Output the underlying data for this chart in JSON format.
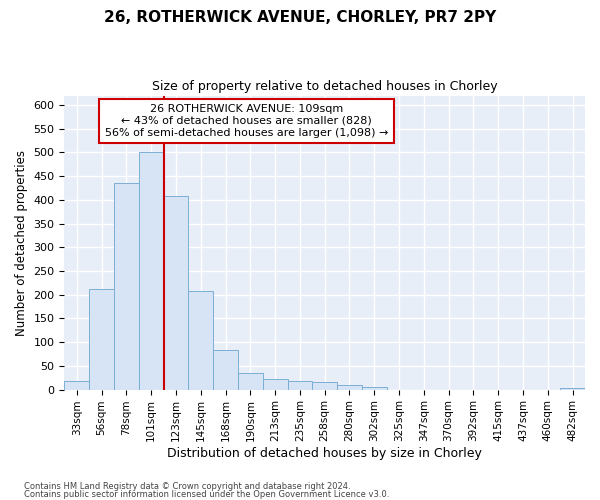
{
  "title_line1": "26, ROTHERWICK AVENUE, CHORLEY, PR7 2PY",
  "title_line2": "Size of property relative to detached houses in Chorley",
  "xlabel": "Distribution of detached houses by size in Chorley",
  "ylabel": "Number of detached properties",
  "categories": [
    "33sqm",
    "56sqm",
    "78sqm",
    "101sqm",
    "123sqm",
    "145sqm",
    "168sqm",
    "190sqm",
    "213sqm",
    "235sqm",
    "258sqm",
    "280sqm",
    "302sqm",
    "325sqm",
    "347sqm",
    "370sqm",
    "392sqm",
    "415sqm",
    "437sqm",
    "460sqm",
    "482sqm"
  ],
  "values": [
    18,
    212,
    435,
    500,
    408,
    207,
    83,
    36,
    22,
    18,
    15,
    10,
    5,
    0,
    0,
    0,
    0,
    0,
    0,
    0,
    4
  ],
  "bar_color": "#d6e4f5",
  "bar_edge_color": "#7bafd4",
  "vline_color": "#cc0000",
  "vline_pos": 3.5,
  "annotation_line1": "26 ROTHERWICK AVENUE: 109sqm",
  "annotation_line2": "← 43% of detached houses are smaller (828)",
  "annotation_line3": "56% of semi-detached houses are larger (1,098) →",
  "annotation_box_facecolor": "#ffffff",
  "annotation_box_edgecolor": "#cc0000",
  "ylim": [
    0,
    620
  ],
  "yticks": [
    0,
    50,
    100,
    150,
    200,
    250,
    300,
    350,
    400,
    450,
    500,
    550,
    600
  ],
  "fig_facecolor": "#ffffff",
  "ax_facecolor": "#e8eef8",
  "grid_color": "#ffffff",
  "footer_line1": "Contains HM Land Registry data © Crown copyright and database right 2024.",
  "footer_line2": "Contains public sector information licensed under the Open Government Licence v3.0."
}
